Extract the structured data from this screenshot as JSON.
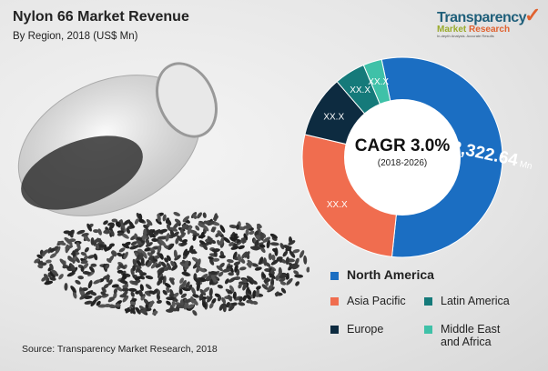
{
  "header": {
    "title": "Nylon 66 Market Revenue",
    "subtitle": "By Region, 2018 (US$ Mn)"
  },
  "logo": {
    "line1": "Transparency",
    "line2a": "Market",
    "line2b": "Research",
    "tagline": "In-depth Analysis. Accurate Results"
  },
  "source": "Source: Transparency Market Research, 2018",
  "chart_data": {
    "type": "pie",
    "donut": true,
    "center_label": "CAGR 3.0%",
    "center_sublabel": "(2018-2026)",
    "slices": [
      {
        "name": "North America",
        "share_pct_est": 55,
        "label_prefix": "US$",
        "label": "2,322.64",
        "label_suffix": "Mn",
        "color": "#1b6ec2"
      },
      {
        "name": "Asia Pacific",
        "share_pct_est": 27,
        "label": "XX.X",
        "color": "#f06d4f"
      },
      {
        "name": "Europe",
        "share_pct_est": 10,
        "label": "XX.X",
        "color": "#0d2b40"
      },
      {
        "name": "Latin America",
        "share_pct_est": 5,
        "label": "XX.X",
        "color": "#157a7a"
      },
      {
        "name": "Middle East and Africa",
        "share_pct_est": 3,
        "label": "XX.X",
        "color": "#3fc1a8"
      }
    ],
    "start_angle_deg": -12,
    "legend": {
      "placement": "bottom-right",
      "items": [
        "North America",
        "Asia Pacific",
        "Latin America",
        "Europe",
        "Middle East",
        "and Africa"
      ]
    }
  }
}
